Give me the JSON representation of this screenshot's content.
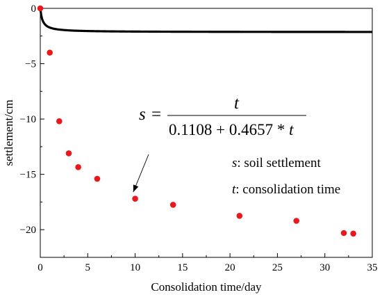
{
  "chart_data": {
    "type": "scatter",
    "xlabel": "Consolidation time/day",
    "ylabel": "settlement/cm",
    "xlim": [
      0,
      35
    ],
    "ylim": [
      -22.5,
      0
    ],
    "xticks": [
      0,
      5,
      10,
      15,
      20,
      25,
      30,
      35
    ],
    "yticks": [
      0,
      -5,
      -10,
      -15,
      -20
    ],
    "xtick_labels": [
      "0",
      "5",
      "10",
      "15",
      "20",
      "25",
      "30",
      "35"
    ],
    "ytick_labels": [
      "0",
      "−5",
      "−10",
      "−15",
      "−20"
    ],
    "grid": false,
    "series": [
      {
        "kind": "points",
        "color": "#e8181c",
        "x": [
          0,
          1,
          2,
          3,
          4,
          6,
          10,
          14,
          21,
          27,
          32,
          33
        ],
        "y": [
          0,
          -4.0,
          -10.2,
          -13.1,
          -14.35,
          -15.4,
          -17.2,
          -17.75,
          -18.75,
          -19.2,
          -20.3,
          -20.35
        ]
      },
      {
        "kind": "fit-line",
        "color": "#000000",
        "a": 0.1108,
        "b": 0.4657
      }
    ],
    "annotations": {
      "equation_lhs": "s",
      "equation_eq": "=",
      "equation_numerator": "t",
      "equation_denominator_parts": [
        "0.1108 + 0.4657 * ",
        "t"
      ],
      "legend_s_symbol": "s",
      "legend_s_text": ": soil settlement",
      "legend_t_symbol": "t",
      "legend_t_text": ": consolidation time",
      "arrow_target": [
        9.8,
        -16.6
      ]
    }
  }
}
